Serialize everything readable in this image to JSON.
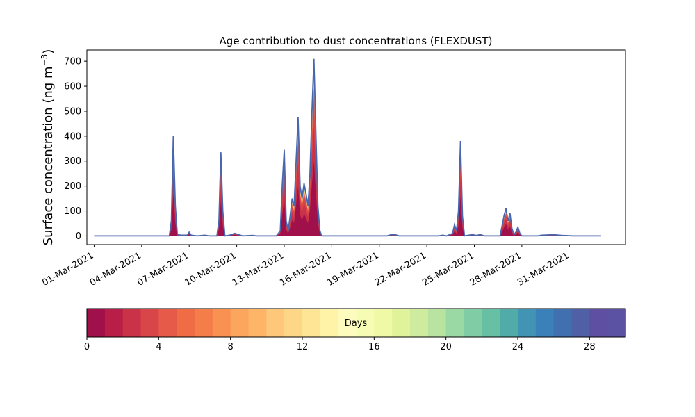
{
  "chart_data": {
    "type": "area",
    "title": "Age contribution to dust concentrations (FLEXDUST)",
    "ylabel": "Surface concentration (ng m",
    "ylabel_exponent": "−3",
    "ylabel_close": ")",
    "xlabel": "",
    "x_ticks": [
      "01-Mar-2021",
      "04-Mar-2021",
      "07-Mar-2021",
      "10-Mar-2021",
      "13-Mar-2021",
      "16-Mar-2021",
      "19-Mar-2021",
      "22-Mar-2021",
      "25-Mar-2021",
      "28-Mar-2021",
      "31-Mar-2021"
    ],
    "y_ticks": [
      0,
      100,
      200,
      300,
      400,
      500,
      600,
      700
    ],
    "xlim": [
      "2021-02-28T13:00",
      "2021-04-03T13:00"
    ],
    "ylim": [
      -35,
      745
    ],
    "grid": false,
    "series": [
      {
        "values": [
          [
            "2021-03-01T00:00",
            0
          ],
          [
            "2021-03-05T18:00",
            0
          ],
          [
            "2021-03-05T21:00",
            60
          ],
          [
            "2021-03-06T00:00",
            400
          ],
          [
            "2021-03-06T03:00",
            120
          ],
          [
            "2021-03-06T06:00",
            5
          ],
          [
            "2021-03-06T12:00",
            3
          ],
          [
            "2021-03-06T21:00",
            3
          ],
          [
            "2021-03-07T00:00",
            15
          ],
          [
            "2021-03-07T03:00",
            3
          ],
          [
            "2021-03-07T12:00",
            0
          ],
          [
            "2021-03-08T00:00",
            3
          ],
          [
            "2021-03-08T06:00",
            0
          ],
          [
            "2021-03-08T18:00",
            0
          ],
          [
            "2021-03-08T21:00",
            60
          ],
          [
            "2021-03-09T00:00",
            335
          ],
          [
            "2021-03-09T03:00",
            100
          ],
          [
            "2021-03-09T06:00",
            0
          ],
          [
            "2021-03-09T12:00",
            2
          ],
          [
            "2021-03-09T21:00",
            10
          ],
          [
            "2021-03-10T03:00",
            5
          ],
          [
            "2021-03-10T09:00",
            0
          ],
          [
            "2021-03-11T00:00",
            2
          ],
          [
            "2021-03-11T06:00",
            0
          ],
          [
            "2021-03-12T12:00",
            0
          ],
          [
            "2021-03-12T18:00",
            20
          ],
          [
            "2021-03-12T21:00",
            200
          ],
          [
            "2021-03-13T00:00",
            345
          ],
          [
            "2021-03-13T03:00",
            60
          ],
          [
            "2021-03-13T06:00",
            20
          ],
          [
            "2021-03-13T09:00",
            80
          ],
          [
            "2021-03-13T12:00",
            150
          ],
          [
            "2021-03-13T15:00",
            120
          ],
          [
            "2021-03-13T18:00",
            300
          ],
          [
            "2021-03-13T21:00",
            475
          ],
          [
            "2021-03-14T00:00",
            200
          ],
          [
            "2021-03-14T03:00",
            150
          ],
          [
            "2021-03-14T06:00",
            210
          ],
          [
            "2021-03-14T09:00",
            170
          ],
          [
            "2021-03-14T12:00",
            120
          ],
          [
            "2021-03-14T15:00",
            250
          ],
          [
            "2021-03-14T18:00",
            500
          ],
          [
            "2021-03-14T21:00",
            710
          ],
          [
            "2021-03-15T00:00",
            400
          ],
          [
            "2021-03-15T03:00",
            120
          ],
          [
            "2021-03-15T06:00",
            20
          ],
          [
            "2021-03-15T09:00",
            0
          ],
          [
            "2021-03-19T12:00",
            0
          ],
          [
            "2021-03-19T18:00",
            5
          ],
          [
            "2021-03-20T00:00",
            5
          ],
          [
            "2021-03-20T06:00",
            0
          ],
          [
            "2021-03-22T18:00",
            0
          ],
          [
            "2021-03-23T00:00",
            3
          ],
          [
            "2021-03-23T06:00",
            0
          ],
          [
            "2021-03-23T15:00",
            10
          ],
          [
            "2021-03-23T18:00",
            45
          ],
          [
            "2021-03-23T21:00",
            20
          ],
          [
            "2021-03-24T00:00",
            100
          ],
          [
            "2021-03-24T03:00",
            380
          ],
          [
            "2021-03-24T06:00",
            80
          ],
          [
            "2021-03-24T09:00",
            0
          ],
          [
            "2021-03-24T21:00",
            5
          ],
          [
            "2021-03-25T03:00",
            2
          ],
          [
            "2021-03-25T09:00",
            5
          ],
          [
            "2021-03-25T15:00",
            0
          ],
          [
            "2021-03-26T15:00",
            0
          ],
          [
            "2021-03-26T18:00",
            40
          ],
          [
            "2021-03-26T21:00",
            80
          ],
          [
            "2021-03-27T00:00",
            110
          ],
          [
            "2021-03-27T03:00",
            60
          ],
          [
            "2021-03-27T06:00",
            90
          ],
          [
            "2021-03-27T09:00",
            30
          ],
          [
            "2021-03-27T12:00",
            5
          ],
          [
            "2021-03-27T15:00",
            15
          ],
          [
            "2021-03-27T18:00",
            35
          ],
          [
            "2021-03-27T21:00",
            10
          ],
          [
            "2021-03-28T00:00",
            0
          ],
          [
            "2021-03-29T00:00",
            0
          ],
          [
            "2021-03-29T06:00",
            3
          ],
          [
            "2021-03-30T00:00",
            5
          ],
          [
            "2021-03-30T12:00",
            2
          ],
          [
            "2021-03-31T06:00",
            0
          ],
          [
            "2021-04-02T00:00",
            0
          ]
        ]
      }
    ],
    "colorbar": {
      "label": "Days",
      "ticks": [
        0,
        4,
        8,
        12,
        16,
        20,
        24,
        28
      ],
      "range": [
        0,
        30
      ],
      "colors": [
        "#a0104a",
        "#b81e48",
        "#ca3247",
        "#d8464a",
        "#e55a48",
        "#ef6c45",
        "#f57d4a",
        "#f89152",
        "#fca55d",
        "#feb567",
        "#fec77a",
        "#fed688",
        "#fee595",
        "#fff3a8",
        "#fefcbd",
        "#f7fcb5",
        "#eff9a6",
        "#e1f39a",
        "#cfec9e",
        "#b8e3a1",
        "#9ad8a4",
        "#7fcca5",
        "#67bfa4",
        "#51aba9",
        "#4294b5",
        "#3a80b9",
        "#4170b0",
        "#5060a6",
        "#5e4fa2",
        "#5b52a3"
      ]
    }
  }
}
